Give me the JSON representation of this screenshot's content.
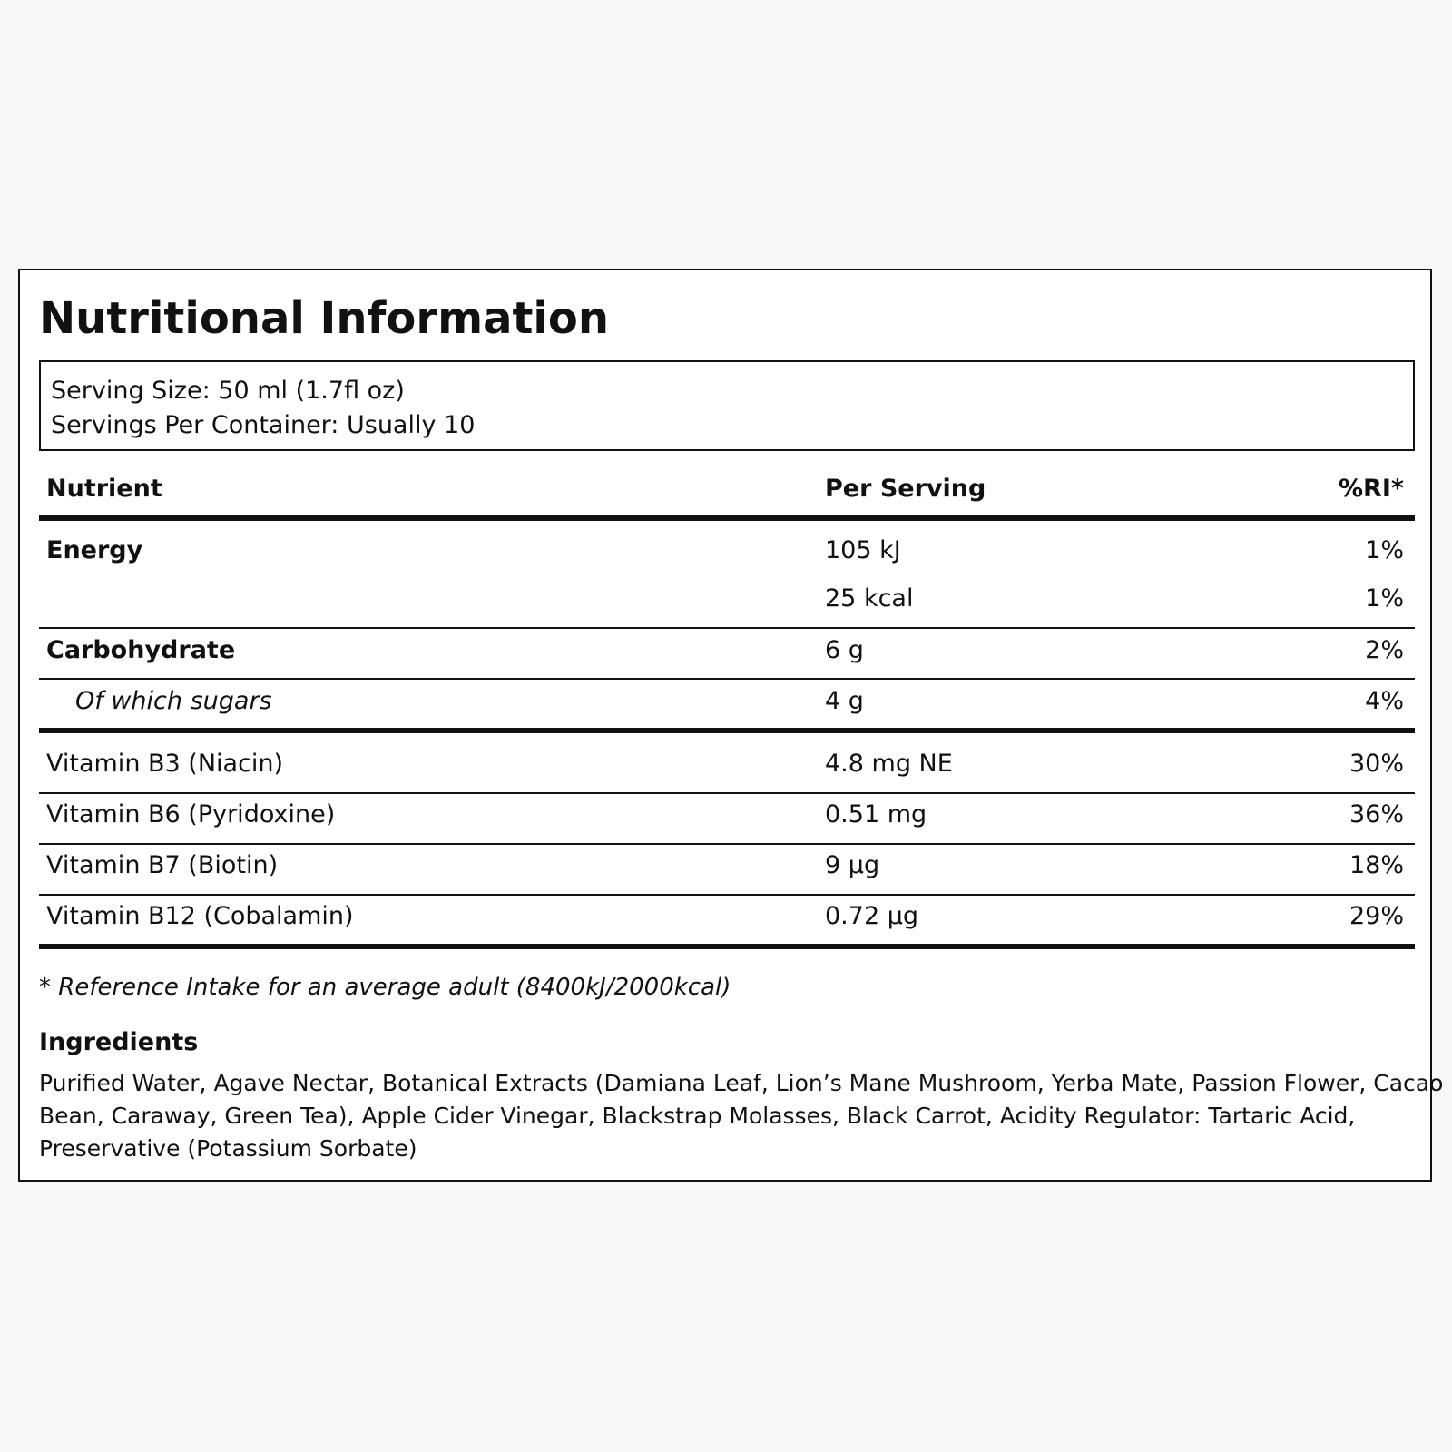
{
  "title": "Nutritional Information",
  "serving": {
    "size": "Serving Size: 50 ml (1.7fl oz)",
    "per_container": "Servings Per Container: Usually 10"
  },
  "table": {
    "headers": [
      "Nutrient",
      "Per Serving",
      "%RI*"
    ],
    "rows": [
      {
        "nutrient": "Energy",
        "amount": "105 kJ",
        "ri": "1%"
      },
      {
        "nutrient": "",
        "amount": "25 kcal",
        "ri": "1%"
      },
      {
        "nutrient": "Carbohydrate",
        "amount": "6 g",
        "ri": "2%"
      },
      {
        "nutrient": "Of which sugars",
        "amount": "4 g",
        "ri": "4%"
      },
      {
        "nutrient": "Vitamin B3 (Niacin)",
        "amount": "4.8 mg NE",
        "ri": "30%"
      },
      {
        "nutrient": "Vitamin B6 (Pyridoxine)",
        "amount": "0.51 mg",
        "ri": "36%"
      },
      {
        "nutrient": "Vitamin B7 (Biotin)",
        "amount": "9 µg",
        "ri": "18%"
      },
      {
        "nutrient": "Vitamin B12 (Cobalamin)",
        "amount": "0.72 µg",
        "ri": "29%"
      }
    ]
  },
  "footnote": "* Reference Intake for an average adult (8400kJ/2000kcal)",
  "ingredients": {
    "heading": "Ingredients",
    "lines": [
      "Purified Water, Agave Nectar, Botanical Extracts (Damiana Leaf, Lion’s Mane Mushroom, Yerba Mate, Passion Flower, Cacao",
      "Bean, Caraway, Green Tea), Apple Cider Vinegar, Blackstrap Molasses, Black Carrot, Acidity Regulator: Tartaric Acid,",
      "Preservative (Potassium Sorbate)"
    ]
  }
}
